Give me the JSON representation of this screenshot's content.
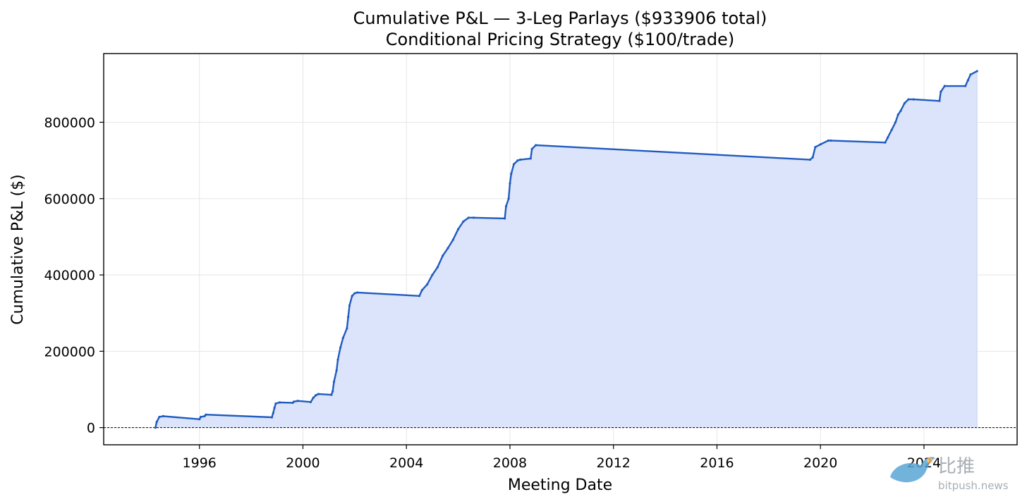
{
  "chart_data": {
    "type": "area",
    "title": "Cumulative P&L — 3-Leg Parlays ($933906 total)",
    "subtitle": "Conditional Pricing Strategy ($100/trade)",
    "xlabel": "Meeting Date",
    "ylabel": "Cumulative P&L ($)",
    "xlim": [
      1992.3,
      2027.6
    ],
    "ylim": [
      -45000,
      980000
    ],
    "x_ticks": [
      1996,
      2000,
      2004,
      2008,
      2012,
      2016,
      2020,
      2024
    ],
    "x_tick_labels": [
      "1996",
      "2000",
      "2004",
      "2008",
      "2012",
      "2016",
      "2020",
      "2024"
    ],
    "y_ticks": [
      0,
      200000,
      400000,
      600000,
      800000
    ],
    "y_tick_labels": [
      "0",
      "200000",
      "400000",
      "600000",
      "800000"
    ],
    "grid": true,
    "zero_line": {
      "y": 0,
      "style": "dashed"
    },
    "colors": {
      "line": "#1f5bbf",
      "fill": "#dce4fb",
      "grid": "#e6e6e6",
      "zero_line": "#000000"
    },
    "series": [
      {
        "x": [
          1994.3,
          1994.35,
          1994.45,
          1994.6,
          1996.0,
          1996.05,
          1996.2,
          1996.25,
          1998.8,
          1998.85,
          1998.9,
          1998.95,
          1999.1,
          1999.6,
          1999.65,
          1999.8,
          2000.3,
          2000.4,
          2000.5,
          2000.6,
          2001.1,
          2001.15,
          2001.2,
          2001.3,
          2001.35,
          2001.45,
          2001.55,
          2001.7,
          2001.75,
          2001.8,
          2001.9,
          2002.0,
          2002.1,
          2004.5,
          2004.6,
          2004.8,
          2005.0,
          2005.2,
          2005.4,
          2005.6,
          2005.8,
          2006.0,
          2006.2,
          2006.4,
          2006.6,
          2007.8,
          2007.85,
          2007.95,
          2008.0,
          2008.05,
          2008.15,
          2008.3,
          2008.4,
          2008.8,
          2008.85,
          2009.0,
          2019.6,
          2019.7,
          2019.8,
          2020.0,
          2020.3,
          2020.4,
          2022.5,
          2022.6,
          2022.75,
          2022.9,
          2023.0,
          2023.1,
          2023.25,
          2023.4,
          2023.6,
          2024.6,
          2024.65,
          2024.8,
          2025.6,
          2025.7,
          2025.8,
          2026.05
        ],
        "y": [
          0,
          15000,
          28000,
          30000,
          22000,
          28000,
          30000,
          34000,
          27000,
          38000,
          52000,
          63000,
          66000,
          65000,
          68000,
          70000,
          67000,
          78000,
          85000,
          88000,
          86000,
          95000,
          120000,
          150000,
          178000,
          210000,
          235000,
          260000,
          290000,
          320000,
          345000,
          352000,
          354000,
          345000,
          360000,
          375000,
          400000,
          420000,
          450000,
          470000,
          492000,
          520000,
          540000,
          550000,
          550000,
          548000,
          580000,
          600000,
          640000,
          665000,
          690000,
          700000,
          702000,
          705000,
          730000,
          740000,
          702000,
          708000,
          735000,
          742000,
          752000,
          752000,
          747000,
          760000,
          780000,
          800000,
          820000,
          830000,
          850000,
          860000,
          860000,
          856000,
          880000,
          895000,
          895000,
          910000,
          925000,
          933906
        ]
      }
    ]
  },
  "watermark": {
    "name_cn": "比推",
    "domain": "bitpush.news"
  }
}
